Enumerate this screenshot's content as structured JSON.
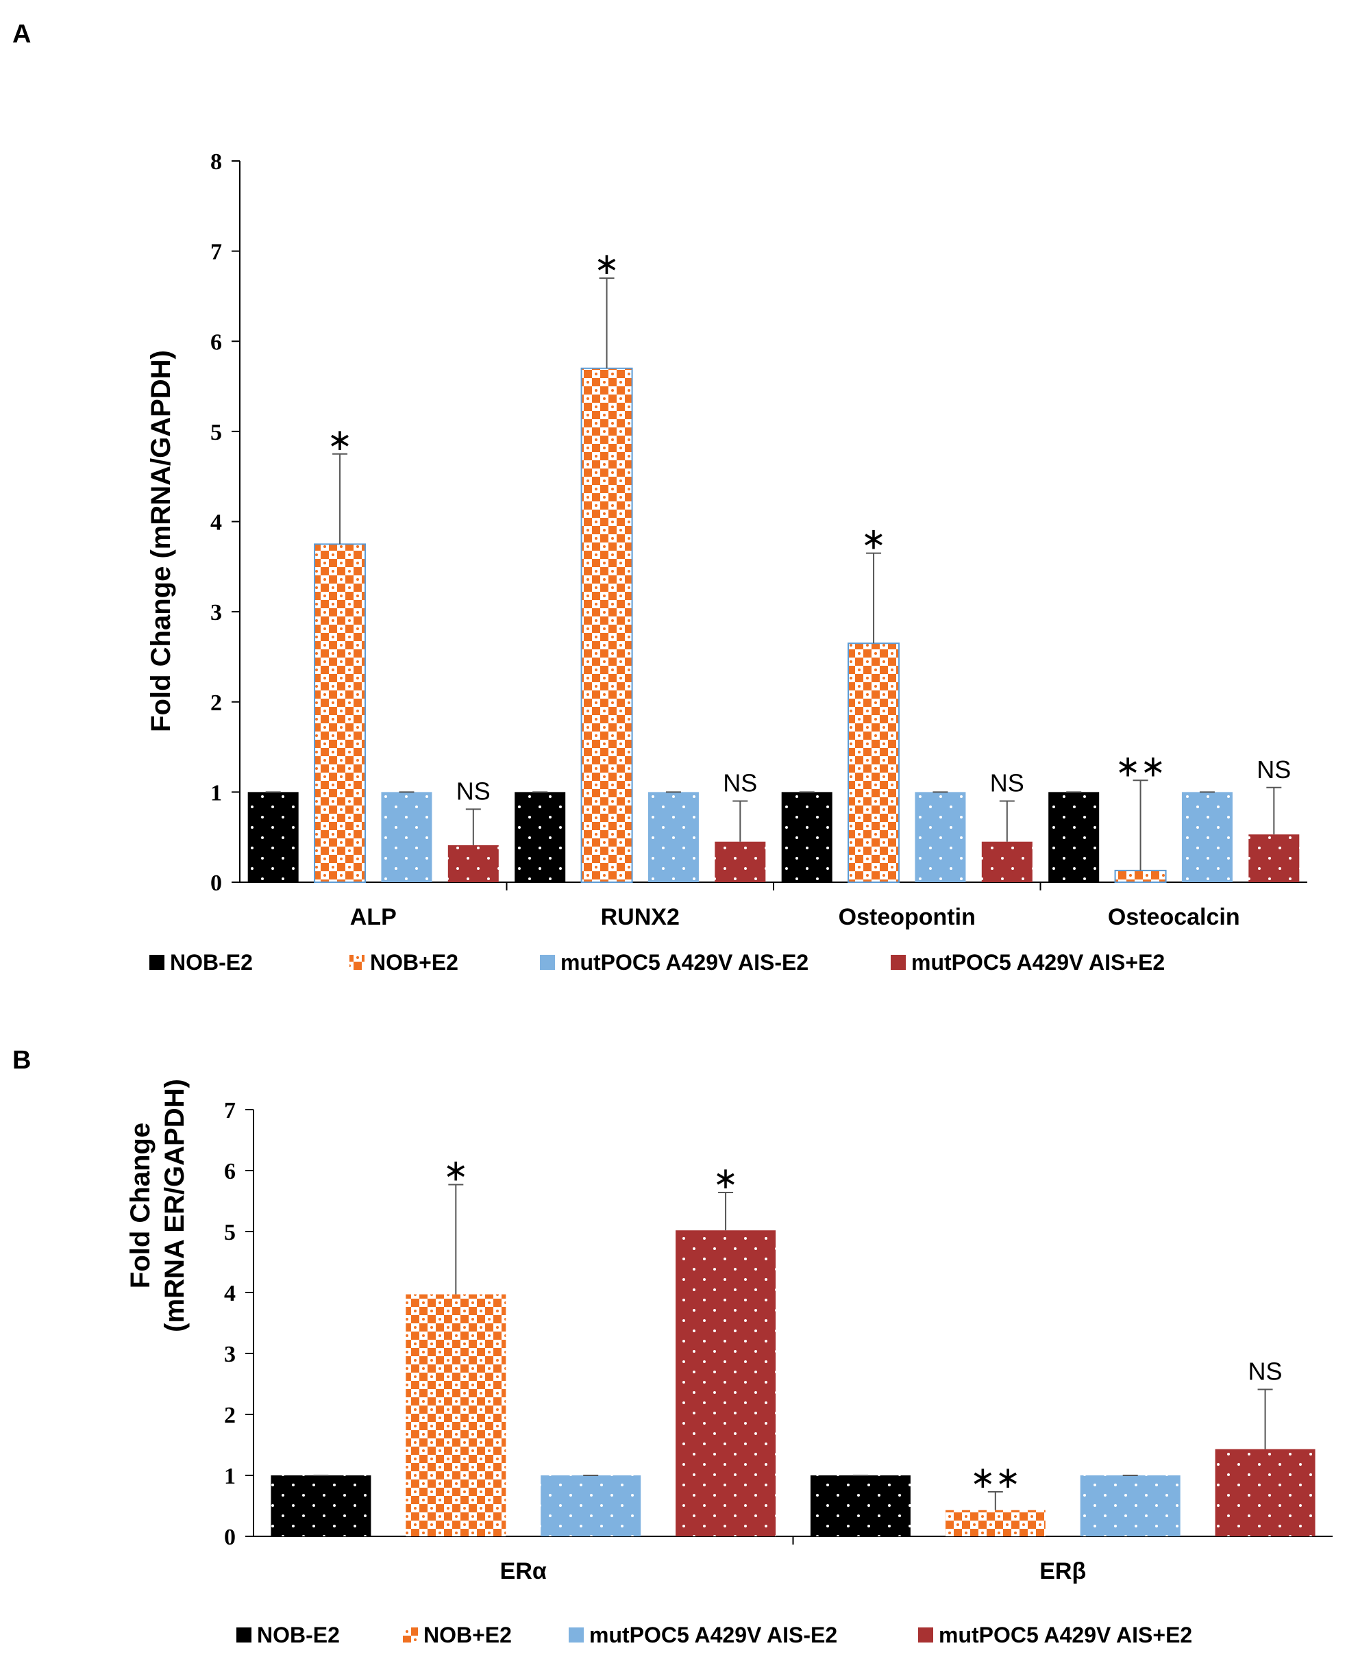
{
  "chart_data": [
    {
      "panel": "A",
      "type": "bar",
      "title": "",
      "xlabel": "",
      "ylabel": "Fold Change (mRNA/GAPDH)",
      "ylim": [
        0,
        8
      ],
      "yticks": [
        0,
        1,
        2,
        3,
        4,
        5,
        6,
        7,
        8
      ],
      "categories": [
        "ALP",
        "RUNX2",
        "Osteopontin",
        "Osteocalcin"
      ],
      "series": [
        {
          "name": "NOB-E2",
          "values": [
            1,
            1,
            1,
            1
          ],
          "errors": [
            0,
            0,
            0,
            0
          ],
          "color": "#000000",
          "pattern": "dots-light"
        },
        {
          "name": "NOB+E2",
          "values": [
            3.75,
            5.7,
            2.65,
            0.13
          ],
          "errors": [
            1.0,
            1.0,
            1.0,
            1.0
          ],
          "color": "#f07020",
          "pattern": "checker"
        },
        {
          "name": "mutPOC5 A429V AIS-E2",
          "values": [
            1,
            1,
            1,
            1
          ],
          "errors": [
            0,
            0,
            0,
            0
          ],
          "color": "#7fb2e0",
          "pattern": "dots-light"
        },
        {
          "name": "mutPOC5 A429V AIS+E2",
          "values": [
            0.41,
            0.45,
            0.45,
            0.53
          ],
          "errors": [
            0.4,
            0.45,
            0.45,
            0.52
          ],
          "color": "#a83232",
          "pattern": "dots-light"
        }
      ],
      "annotations": [
        [
          "*",
          "NS"
        ],
        [
          "*",
          "NS"
        ],
        [
          "*",
          "NS"
        ],
        [
          "**",
          "NS"
        ]
      ],
      "legend": [
        "NOB-E2",
        "NOB+E2",
        "mutPOC5 A429V AIS-E2",
        "mutPOC5 A429V AIS+E2"
      ]
    },
    {
      "panel": "B",
      "type": "bar",
      "title": "",
      "xlabel": "",
      "ylabel_line1": "Fold Change",
      "ylabel_line2": "(mRNA ER/GAPDH)",
      "ylim": [
        0,
        7
      ],
      "yticks": [
        0,
        1,
        2,
        3,
        4,
        5,
        6,
        7
      ],
      "categories": [
        "ERα",
        "ERβ"
      ],
      "series": [
        {
          "name": "NOB-E2",
          "values": [
            1,
            1
          ],
          "errors": [
            0,
            0
          ],
          "color": "#000000",
          "pattern": "dots-light"
        },
        {
          "name": "NOB+E2",
          "values": [
            3.97,
            0.43
          ],
          "errors": [
            1.8,
            0.3
          ],
          "color": "#f07020",
          "pattern": "checker"
        },
        {
          "name": "mutPOC5 A429V AIS-E2",
          "values": [
            1,
            1
          ],
          "errors": [
            0,
            0
          ],
          "color": "#7fb2e0",
          "pattern": "dots-light"
        },
        {
          "name": "mutPOC5 A429V AIS+E2",
          "values": [
            5.02,
            1.43
          ],
          "errors": [
            0.62,
            0.98
          ],
          "color": "#a83232",
          "pattern": "dots-light"
        }
      ],
      "annotations": [
        [
          "*",
          "*"
        ],
        [
          "**",
          "NS"
        ]
      ],
      "legend": [
        "NOB-E2",
        "NOB+E2",
        "mutPOC5 A429V AIS-E2",
        "mutPOC5 A429V AIS+E2"
      ]
    }
  ]
}
